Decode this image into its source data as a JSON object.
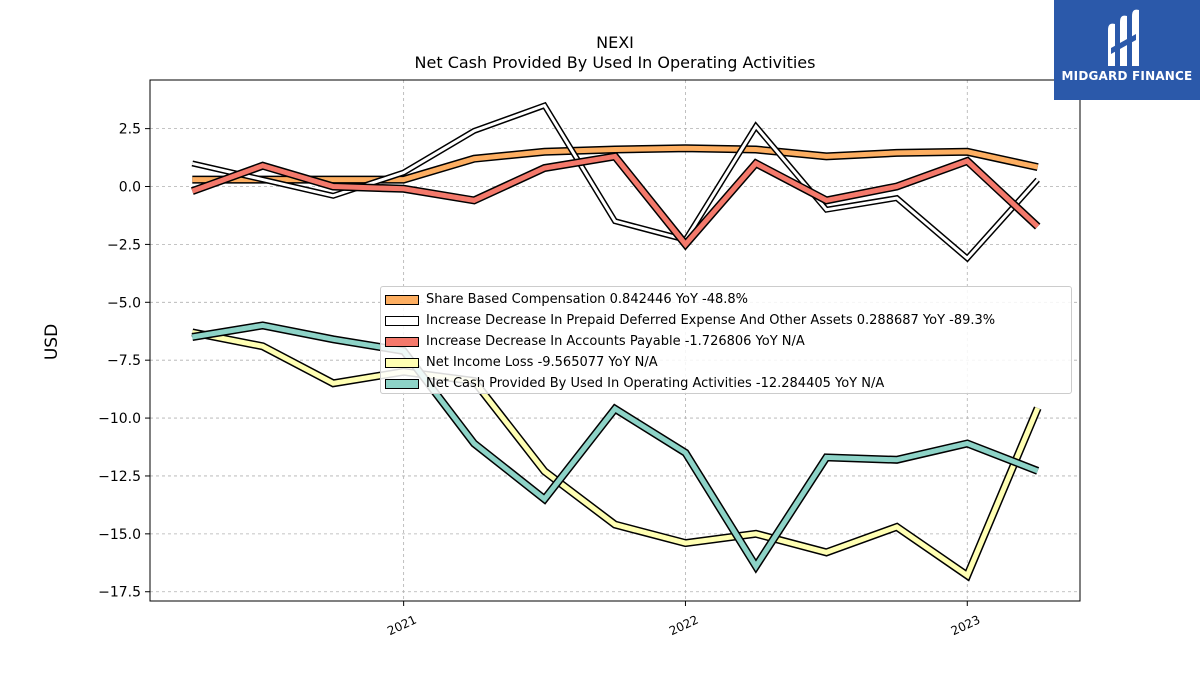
{
  "header": {
    "title": "NEXI",
    "subtitle": "Net Cash Provided By Used In Operating Activities"
  },
  "logo": {
    "text": "MIDGARD FINANCE",
    "background": "#2b59aa"
  },
  "chart_data": {
    "type": "line",
    "ylabel": "USD",
    "xlabel": "",
    "ylim": [
      -17.9,
      4.6
    ],
    "xlim": [
      2020.1,
      2023.4
    ],
    "yticks": [
      2.5,
      0.0,
      -2.5,
      -5.0,
      -7.5,
      -10.0,
      -12.5,
      -15.0,
      -17.5
    ],
    "ytick_labels": [
      "2.5",
      "0.0",
      "−2.5",
      "−5.0",
      "−7.5",
      "−10.0",
      "−12.5",
      "−15.0",
      "−17.5"
    ],
    "xticks": [
      2021,
      2022,
      2023
    ],
    "xtick_labels": [
      "2021",
      "2022",
      "2023"
    ],
    "grid": true,
    "legend_position": "center-right",
    "x": [
      2020.25,
      2020.5,
      2020.75,
      2021.0,
      2021.25,
      2021.5,
      2021.75,
      2022.0,
      2022.25,
      2022.5,
      2022.75,
      2023.0,
      2023.25
    ],
    "series": [
      {
        "name": "Share Based Compensation",
        "legend_label": "Share Based Compensation  0.842446 YoY -48.8%",
        "color": "#fdae61",
        "width": 5,
        "values": [
          0.3,
          0.3,
          0.3,
          0.3,
          1.2,
          1.5,
          1.6,
          1.65,
          1.6,
          1.3,
          1.45,
          1.5,
          0.84
        ]
      },
      {
        "name": "Increase Decrease In Prepaid Deferred Expense And Other Assets",
        "legend_label": "Increase Decrease In Prepaid Deferred Expense And Other Assets  0.288687 YoY -89.3%",
        "color": "#ffffff",
        "width": 3,
        "values": [
          1.0,
          0.3,
          -0.4,
          0.6,
          2.4,
          3.5,
          -1.5,
          -2.3,
          2.6,
          -1.0,
          -0.5,
          -3.1,
          0.29
        ]
      },
      {
        "name": "Increase Decrease In Accounts Payable",
        "legend_label": "Increase Decrease In Accounts Payable  -1.726806 YoY N/A",
        "color": "#f4796b",
        "width": 5,
        "values": [
          -0.2,
          0.9,
          0.0,
          -0.1,
          -0.6,
          0.8,
          1.3,
          -2.5,
          1.0,
          -0.6,
          0.0,
          1.1,
          -1.73
        ]
      },
      {
        "name": "Net Income Loss",
        "legend_label": "Net Income Loss  -9.565077 YoY N/A",
        "color": "#ffffb3",
        "width": 5,
        "values": [
          -6.3,
          -6.9,
          -8.5,
          -8.0,
          -8.4,
          -12.3,
          -14.6,
          -15.4,
          -15.0,
          -15.8,
          -14.7,
          -16.8,
          -9.57
        ]
      },
      {
        "name": "Net Cash Provided By Used In Operating Activities",
        "legend_label": "Net Cash Provided By Used In Operating Activities  -12.284405 YoY N/A",
        "color": "#8dd3c7",
        "width": 5,
        "values": [
          -6.5,
          -6.0,
          -6.6,
          -7.1,
          -11.1,
          -13.5,
          -9.6,
          -11.5,
          -16.4,
          -11.7,
          -11.8,
          -11.1,
          -12.28
        ]
      }
    ]
  }
}
